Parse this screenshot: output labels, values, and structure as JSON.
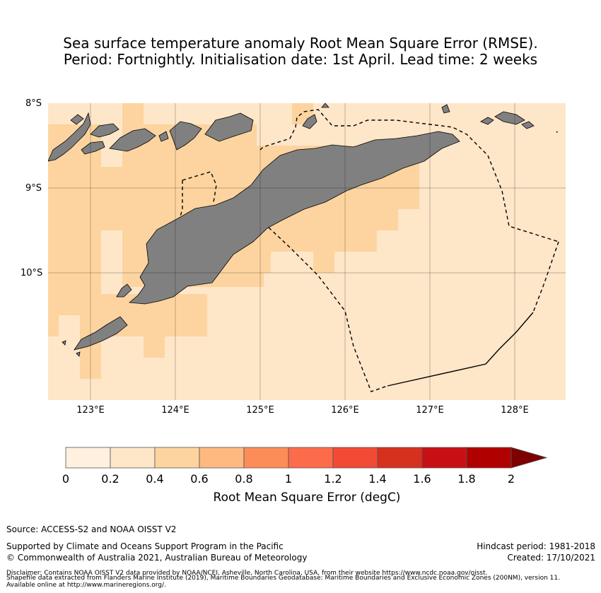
{
  "title": {
    "line1": "Sea surface temperature anomaly Root Mean Square Error (RMSE).",
    "line2": "Period: Fortnightly. Initialisation date: 1st April. Lead time: 2 weeks"
  },
  "map": {
    "lat_labels": [
      "8°S",
      "9°S",
      "10°S"
    ],
    "lon_labels": [
      "123°E",
      "124°E",
      "125°E",
      "126°E",
      "127°E",
      "128°E"
    ],
    "land_color": "#808080",
    "ocean_low_color": "#fee6c9",
    "ocean_mid_color": "#fdd49f"
  },
  "colorbar": {
    "ticks": [
      "0",
      "0.2",
      "0.4",
      "0.6",
      "0.8",
      "1",
      "1.2",
      "1.4",
      "1.6",
      "1.8",
      "2"
    ],
    "colors": [
      "#fff0df",
      "#fee6c9",
      "#fdd49f",
      "#fdb97f",
      "#fc8d59",
      "#fc6b4a",
      "#f34a36",
      "#d7301f",
      "#c81014",
      "#b00000",
      "#7f0000"
    ],
    "label": "Root Mean Square Error (degC)"
  },
  "footer": {
    "source": "Source: ACCESS-S2 and NOAA OISST V2",
    "support": "Supported by Climate and Oceans Support Program in the Pacific",
    "copyright": "© Commonwealth of Australia 2021, Australian Bureau of Meteorology",
    "hindcast": "Hindcast period: 1981-2018",
    "created": "Created: 17/10/2021",
    "disclaimer1": "Disclaimer: Contains NOAA OISST V2 data provided by NOAA/NCEI, Asheville, North Carolina, USA, from their website https://www.ncdc.noaa.gov/oisst.",
    "disclaimer2": "Shapefile data extracted from Flanders Marine Institute (2019), Maritime Boundaries Geodatabase: Maritime Boundaries and Exclusive Economic Zones (200NM), version 11.",
    "disclaimer3": "Available online at http://www.marineregions.org/."
  }
}
